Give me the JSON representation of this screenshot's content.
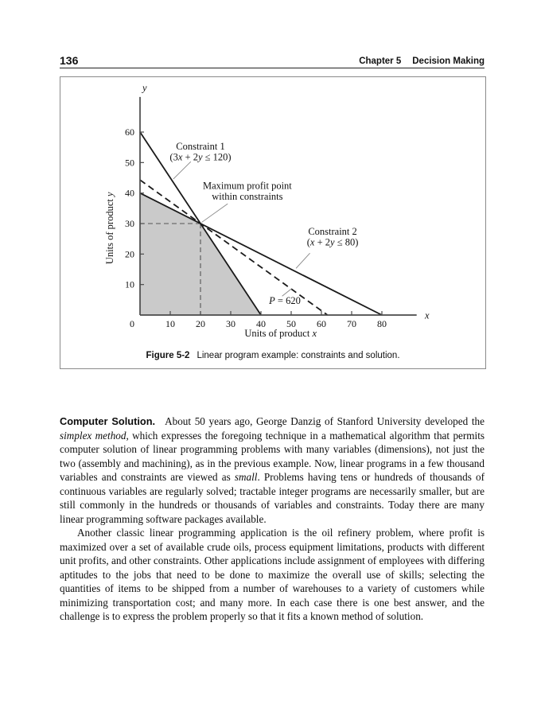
{
  "header": {
    "page_number": "136",
    "chapter": "Chapter 5",
    "section": "Decision Making"
  },
  "figure": {
    "caption_label": "Figure 5-2",
    "caption_text": "Linear program example: constraints and solution."
  },
  "chart_data": {
    "type": "line",
    "xlabel": "Units of product x",
    "ylabel": "Units of product y",
    "xlabel_segments": [
      {
        "t": "Units of product "
      },
      {
        "t": "x",
        "i": true
      }
    ],
    "ylabel_segments": [
      {
        "t": "Units of product "
      },
      {
        "t": "y",
        "i": true
      }
    ],
    "xlim": [
      0,
      91.5
    ],
    "ylim": [
      0,
      71.5
    ],
    "x_ticks": [
      10,
      20,
      30,
      40,
      50,
      60,
      70,
      80
    ],
    "y_ticks": [
      10,
      20,
      30,
      40,
      50,
      60
    ],
    "origin_label": "0",
    "axis_letters": [
      {
        "t": "y",
        "x": 0.8,
        "y": 73.5
      },
      {
        "t": "x",
        "x": 94.2,
        "y": -1.2
      }
    ],
    "feasible_region": [
      [
        0,
        0
      ],
      [
        0,
        40
      ],
      [
        20,
        30
      ],
      [
        40,
        0
      ]
    ],
    "constraints": [
      {
        "label": "Constraint 1",
        "inequality": "3x + 2y ≤ 120",
        "intercepts": [
          [
            0,
            60
          ],
          [
            40,
            0
          ]
        ]
      },
      {
        "label": "Constraint 2",
        "inequality": "x + 2y ≤ 80",
        "intercepts": [
          [
            0,
            40
          ],
          [
            80,
            0
          ]
        ]
      }
    ],
    "optimum": {
      "x": 20,
      "y": 30,
      "profit": 620
    },
    "lines": [
      {
        "name": "constraint-1-line",
        "points": [
          [
            0,
            60
          ],
          [
            40,
            0
          ]
        ],
        "dashed": false
      },
      {
        "name": "constraint-2-line",
        "points": [
          [
            0,
            40
          ],
          [
            80,
            0
          ]
        ],
        "dashed": false
      },
      {
        "name": "profit-line-p620",
        "points": [
          [
            0,
            44.3
          ],
          [
            62,
            0
          ]
        ],
        "dashed": true
      }
    ],
    "guide_lines": [
      {
        "name": "optimum-guide-horizontal",
        "points": [
          [
            0,
            30
          ],
          [
            20,
            30
          ]
        ]
      },
      {
        "name": "optimum-guide-vertical",
        "points": [
          [
            20,
            30
          ],
          [
            20,
            0
          ]
        ]
      }
    ],
    "annotations": [
      {
        "name": "constraint-1",
        "x": 20,
        "y": 54.3,
        "lines": [
          [
            {
              "t": "Constraint 1"
            }
          ],
          [
            {
              "t": "(3"
            },
            {
              "t": "x",
              "i": true
            },
            {
              "t": " + 2"
            },
            {
              "t": "y",
              "i": true
            },
            {
              "t": " ≤ 120)"
            }
          ]
        ],
        "leader": [
          [
            16.8,
            50.3
          ],
          [
            11,
            44.6
          ]
        ]
      },
      {
        "name": "max-profit-point",
        "x": 35.5,
        "y": 41.3,
        "lines": [
          [
            {
              "t": "Maximum profit point"
            }
          ],
          [
            {
              "t": "within constraints"
            }
          ]
        ],
        "leader": [
          [
            29,
            36.5
          ],
          [
            20.4,
            30.4
          ]
        ]
      },
      {
        "name": "constraint-2",
        "x": 63.7,
        "y": 26.3,
        "lines": [
          [
            {
              "t": "Constraint 2"
            }
          ],
          [
            {
              "t": "("
            },
            {
              "t": "x",
              "i": true
            },
            {
              "t": " + 2"
            },
            {
              "t": "y",
              "i": true
            },
            {
              "t": " ≤ 80)"
            }
          ]
        ],
        "leader": [
          [
            56.2,
            20.3
          ],
          [
            51.6,
            15.3
          ]
        ]
      },
      {
        "name": "profit-value",
        "x": 47.9,
        "y": 3.6,
        "lines": [
          [
            {
              "t": "P",
              "i": true
            },
            {
              "t": " = 620"
            }
          ]
        ],
        "leader": [
          [
            47,
            6.2
          ],
          [
            50.2,
            8.7
          ]
        ]
      }
    ],
    "colors": {
      "region": "#cacaca",
      "line": "#1a1a1a",
      "axis": "#4a4a4a",
      "guide": "#555555",
      "leader": "#888888",
      "text": "#111111"
    },
    "legend": false,
    "grid": false
  },
  "body": {
    "heading": "Computer Solution.",
    "paragraph1_segments": [
      {
        "t": "About 50 years ago, George Danzig of Stanford University developed the "
      },
      {
        "t": "simplex method",
        "i": true
      },
      {
        "t": ", which expresses the foregoing technique in a mathematical algorithm that permits computer solution of linear programming problems with many variables (dimensions), not just the two (assembly and machining), as in the previous example. Now, linear programs in a few thousand variables and constraints are viewed as "
      },
      {
        "t": "small",
        "i": true
      },
      {
        "t": ". Problems having tens or hundreds of thousands of continuous variables are regularly solved; tractable integer programs are necessarily smaller, but are still commonly in the hundreds or thousands of variables and constraints. Today there are many linear programming software packages available."
      }
    ],
    "paragraph2_segments": [
      {
        "t": "Another classic linear programming application is the oil refinery problem, where profit is maximized over a set of available crude oils, process equipment limitations, products with different unit profits, and other constraints. Other applications include assignment of employees with differing aptitudes to the jobs that need to be done to maximize the overall use of skills; selecting the quantities of items to be shipped from a number of warehouses to a variety of customers while minimizing transportation cost; and many more. In each case there is one best answer, and the challenge is to express the problem properly so that it fits a known method of solution."
      }
    ]
  }
}
